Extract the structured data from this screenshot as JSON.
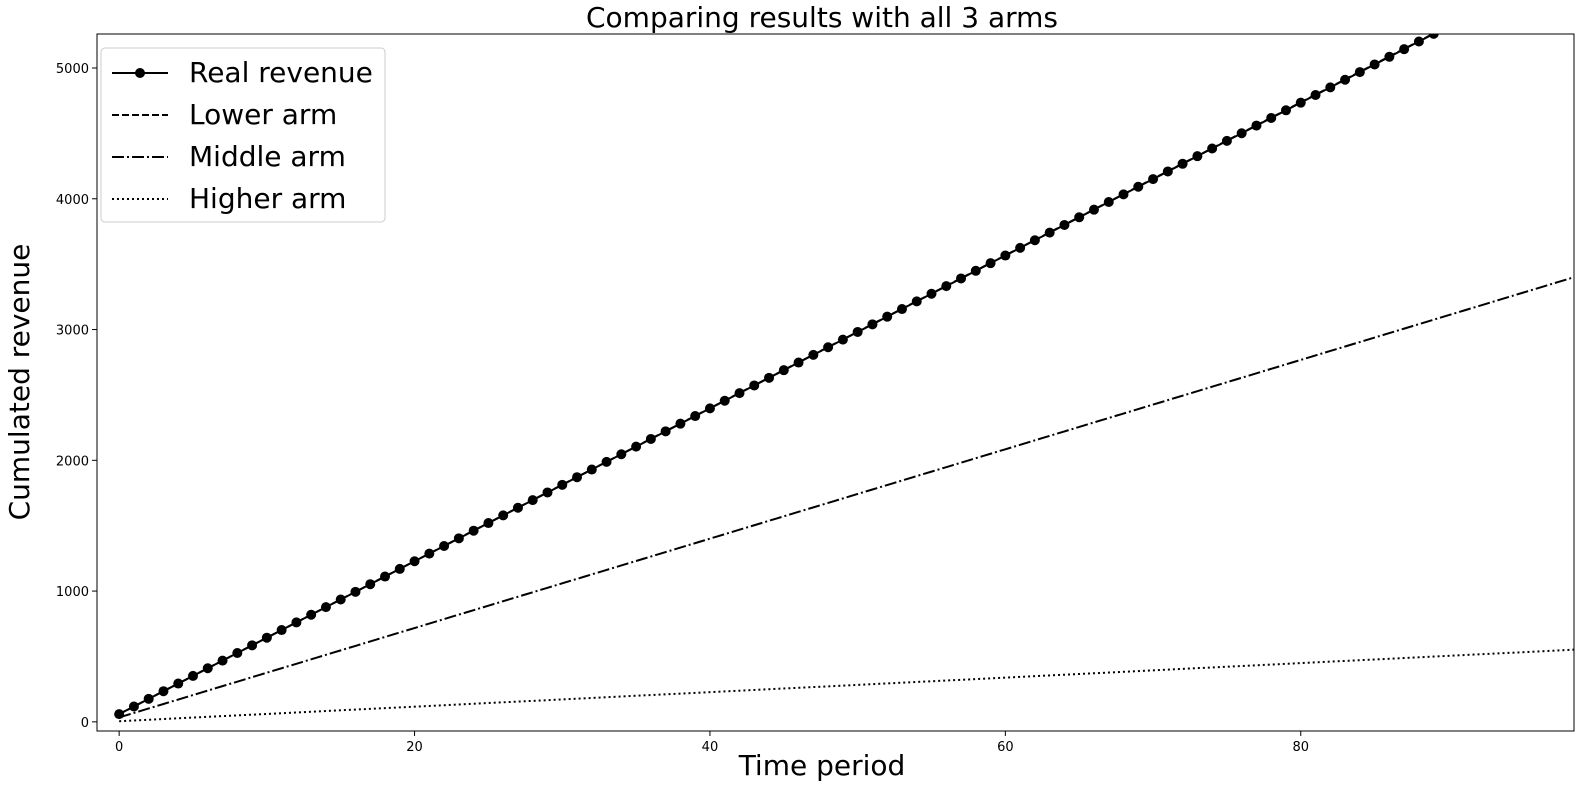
{
  "chart_data": {
    "type": "line",
    "title": "Comparing results with all 3 arms",
    "xlabel": "Time period",
    "ylabel": "Cumulated revenue",
    "xlim": [
      -1.5,
      98.5
    ],
    "ylim": [
      -70,
      5260
    ],
    "xticks": [
      0,
      20,
      40,
      60,
      80
    ],
    "yticks": [
      0,
      1000,
      2000,
      3000,
      4000,
      5000
    ],
    "grid": false,
    "legend": "top-left",
    "series": [
      {
        "name": "Real revenue",
        "style": "solid-markers",
        "x_start": 0,
        "x_end": 89,
        "x_step": 1,
        "y_start": 59,
        "y_end": 5261
      },
      {
        "name": "Lower arm",
        "style": "dashed",
        "x_start": 0,
        "x_end": 98.5,
        "x_step": 0.5,
        "y_start": 59,
        "y_end": 5819
      },
      {
        "name": "Middle arm",
        "style": "dashdot",
        "x_start": 0,
        "x_end": 98.5,
        "x_step": 0.5,
        "y_start": 34,
        "y_end": 3400
      },
      {
        "name": "Higher arm",
        "style": "dotted",
        "x_start": 0,
        "x_end": 98.5,
        "x_step": 0.5,
        "y_start": 5,
        "y_end": 552
      }
    ]
  }
}
